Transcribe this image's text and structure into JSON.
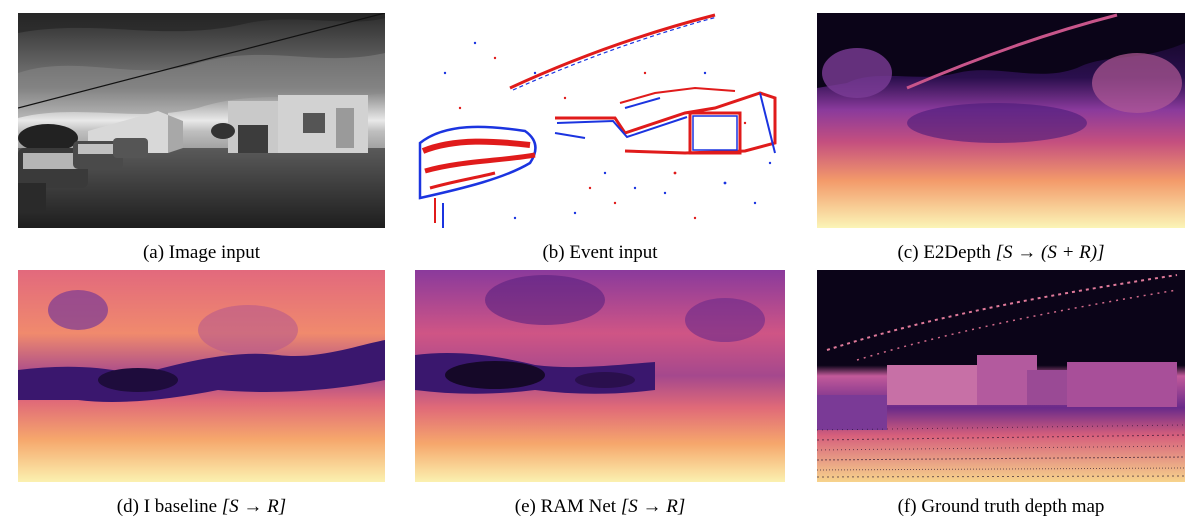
{
  "figure": {
    "panels": [
      {
        "label": "(a)",
        "caption": "Image input",
        "math": ""
      },
      {
        "label": "(b)",
        "caption": "Event input",
        "math": ""
      },
      {
        "label": "(c)",
        "caption": "E2Depth",
        "math": "[S → (S + R)]"
      },
      {
        "label": "(d)",
        "caption": "I baseline",
        "math": "[S → R]"
      },
      {
        "label": "(e)",
        "caption": "RAM Net",
        "math": "[S → R]"
      },
      {
        "label": "(f)",
        "caption": "Ground truth depth map",
        "math": ""
      }
    ]
  },
  "colors": {
    "magma_dark": "#0b0418",
    "magma_purple": "#4a1a7a",
    "magma_magenta": "#b5387d",
    "magma_orange": "#f39a6a",
    "magma_light": "#fbf5b7",
    "event_red": "#e01b1b",
    "event_blue": "#1b34e0"
  }
}
